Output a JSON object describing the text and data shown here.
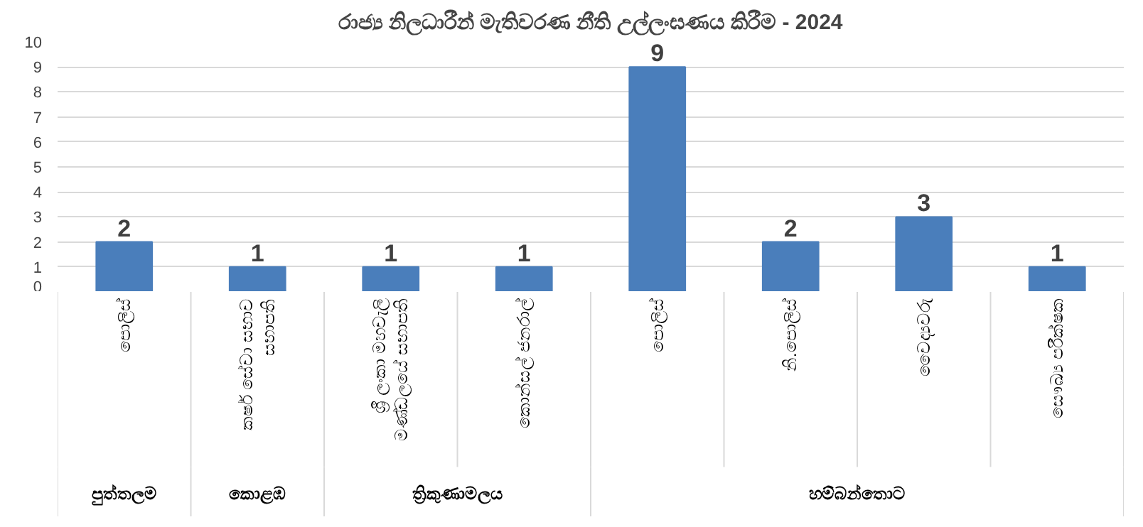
{
  "chart_data": {
    "type": "bar",
    "title": "රාජ්‍ය නිලධාරීන් මැතිවරණ නීති උල්ලංඝණය කිරීම - 2024",
    "categories": [
      "පොලිස්",
      "කර්ෂ සේවා සභාව\nසභාපති",
      "ශ්‍රී ලංකා මහවැලි\nමණ්ඩලයේ සභාපති",
      "කොන්සල් ජනරාල්",
      "පොලිස්",
      "නි.පොලිස්",
      "වෛද්‍යවරු",
      "සෞඛ්‍ය පරීක්ෂක"
    ],
    "annotations": [
      "පුත්තලම",
      "කොළඹ",
      "ත්‍රිකුණාමලය",
      "හම්බන්තොට"
    ],
    "values": [
      2,
      1,
      1,
      1,
      9,
      2,
      3,
      1
    ],
    "color": "#4a7ebb",
    "ylim": [
      0,
      10
    ],
    "yticks": [
      0,
      1,
      2,
      3,
      4,
      5,
      6,
      7,
      8,
      9,
      10
    ],
    "grid": "y",
    "data_labels": true
  }
}
